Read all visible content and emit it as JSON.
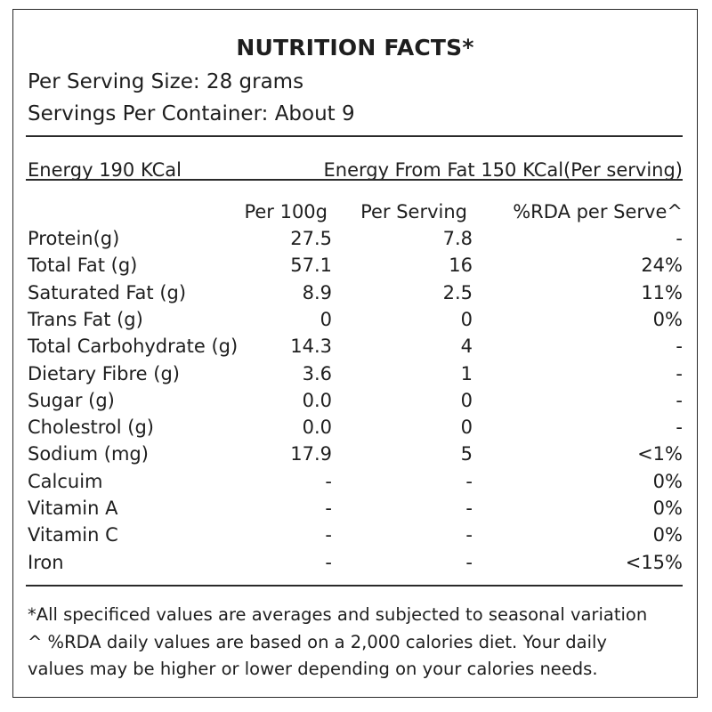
{
  "title": "NUTRITION FACTS*",
  "serving": {
    "size": "Per Serving Size: 28 grams",
    "per_container": "Servings Per Container: About 9"
  },
  "energy": {
    "left": "Energy 190 KCal",
    "right": "Energy From Fat 150 KCal(Per serving)"
  },
  "table": {
    "headers": [
      "Per 100g",
      "Per Serving",
      "%RDA per Serve^"
    ],
    "rows": [
      {
        "name": "Protein(g)",
        "per100g": "27.5",
        "perServing": "7.8",
        "rda": "-"
      },
      {
        "name": "Total Fat (g)",
        "per100g": "57.1",
        "perServing": "16",
        "rda": "24%"
      },
      {
        "name": "Saturated Fat (g)",
        "per100g": "8.9",
        "perServing": "2.5",
        "rda": "11%"
      },
      {
        "name": "Trans Fat (g)",
        "per100g": "0",
        "perServing": "0",
        "rda": "0%"
      },
      {
        "name": "Total Carbohydrate (g)",
        "per100g": "14.3",
        "perServing": "4",
        "rda": "-"
      },
      {
        "name": "Dietary Fibre (g)",
        "per100g": "3.6",
        "perServing": "1",
        "rda": "-"
      },
      {
        "name": "Sugar (g)",
        "per100g": "0.0",
        "perServing": "0",
        "rda": "-"
      },
      {
        "name": "Cholestrol (g)",
        "per100g": "0.0",
        "perServing": "0",
        "rda": "-"
      },
      {
        "name": "Sodium (mg)",
        "per100g": "17.9",
        "perServing": "5",
        "rda": "<1%"
      },
      {
        "name": "Calcuim",
        "per100g": "-",
        "perServing": "-",
        "rda": "0%"
      },
      {
        "name": "Vitamin A",
        "per100g": "-",
        "perServing": "-",
        "rda": "0%"
      },
      {
        "name": "Vitamin C",
        "per100g": "-",
        "perServing": "-",
        "rda": "0%"
      },
      {
        "name": "Iron",
        "per100g": "-",
        "perServing": "-",
        "rda": "<15%"
      }
    ]
  },
  "footnotes": [
    "*All specificed values are averages and subjected to seasonal variation",
    "^ %RDA daily values are based on a 2,000 calories diet. Your daily",
    "values may be higher or lower depending on your calories needs."
  ]
}
